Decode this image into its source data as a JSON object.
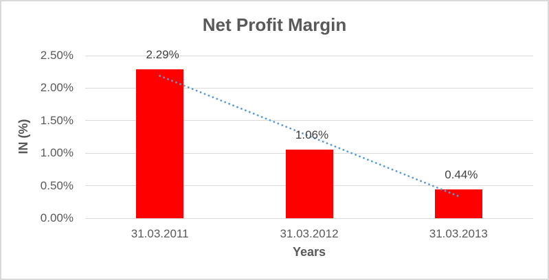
{
  "window": {
    "background_color": "#ffffff",
    "border_color": "#d9d9d9"
  },
  "chart_data": {
    "type": "bar",
    "title": "Net Profit Margin",
    "xlabel": "Years",
    "ylabel": "IN (%)",
    "categories": [
      "31.03.2011",
      "31.03.2012",
      "31.03.2013"
    ],
    "values": [
      2.29,
      1.06,
      0.44
    ],
    "data_labels": [
      "2.29%",
      "1.06%",
      "0.44%"
    ],
    "ylim": [
      0,
      2.5
    ],
    "yticks": [
      {
        "value": 2.5,
        "label": "2.50%"
      },
      {
        "value": 2.0,
        "label": "2.00%"
      },
      {
        "value": 1.5,
        "label": "1.50%"
      },
      {
        "value": 1.0,
        "label": "1.00%"
      },
      {
        "value": 0.5,
        "label": "0.50%"
      },
      {
        "value": 0.0,
        "label": "0.00%"
      }
    ],
    "grid": true,
    "legend": "none",
    "bar_color": "#ff0000",
    "trendline": {
      "type": "linear",
      "style": "dotted",
      "color": "#5b9bd5"
    },
    "colors": {
      "title_text": "#595959",
      "axis_text": "#595959",
      "data_label_text": "#404040",
      "gridline": "#d9d9d9"
    }
  }
}
